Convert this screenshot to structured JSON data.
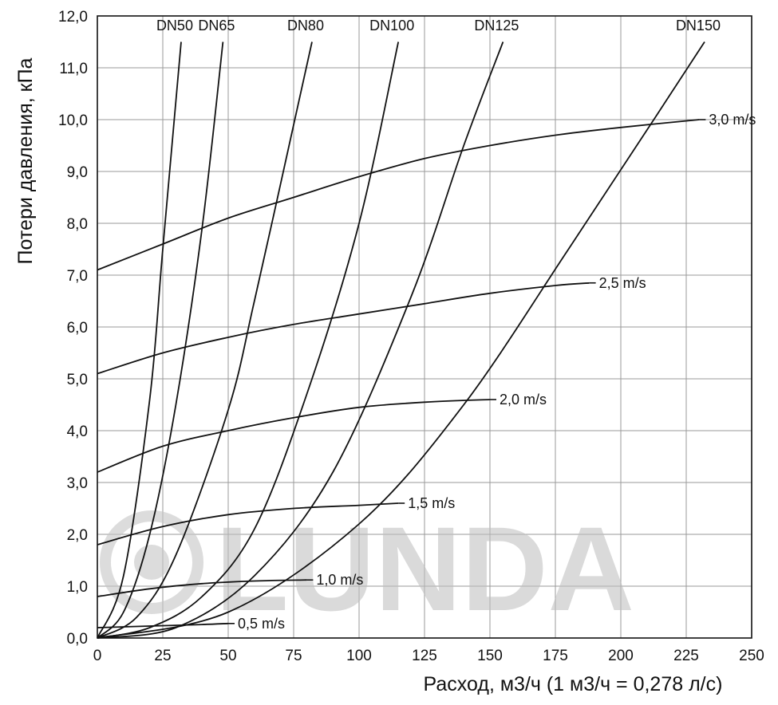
{
  "chart_data": {
    "type": "line",
    "xlabel": "Расход, м3/ч (1 м3/ч = 0,278 л/с)",
    "ylabel": "Потери давления, кПа",
    "xlim": [
      0,
      250
    ],
    "ylim": [
      0,
      12
    ],
    "grid": true,
    "x_ticks": [
      "0",
      "25",
      "50",
      "75",
      "100",
      "125",
      "150",
      "175",
      "200",
      "225",
      "250"
    ],
    "y_ticks": [
      "0,0",
      "1,0",
      "2,0",
      "3,0",
      "4,0",
      "5,0",
      "6,0",
      "7,0",
      "8,0",
      "9,0",
      "10,0",
      "11,0",
      "12,0"
    ],
    "watermark": "LUNDA",
    "series": [
      {
        "name": "DN50",
        "kind": "pipe",
        "points": [
          [
            0,
            0
          ],
          [
            10,
            1.2
          ],
          [
            20,
            4.6
          ],
          [
            25,
            7.5
          ],
          [
            32,
            11.5
          ]
        ]
      },
      {
        "name": "DN65",
        "kind": "pipe",
        "points": [
          [
            0,
            0
          ],
          [
            10,
            0.5
          ],
          [
            20,
            2.0
          ],
          [
            30,
            4.5
          ],
          [
            40,
            7.9
          ],
          [
            48,
            11.5
          ]
        ]
      },
      {
        "name": "DN80",
        "kind": "pipe",
        "points": [
          [
            0,
            0
          ],
          [
            15,
            0.4
          ],
          [
            30,
            1.6
          ],
          [
            50,
            4.4
          ],
          [
            60,
            6.5
          ],
          [
            75,
            9.9
          ],
          [
            82,
            11.5
          ]
        ]
      },
      {
        "name": "DN100",
        "kind": "pipe",
        "points": [
          [
            0,
            0
          ],
          [
            20,
            0.2
          ],
          [
            40,
            0.8
          ],
          [
            60,
            2.1
          ],
          [
            80,
            4.7
          ],
          [
            100,
            8.0
          ],
          [
            115,
            11.5
          ]
        ]
      },
      {
        "name": "DN125",
        "kind": "pipe",
        "points": [
          [
            0,
            0
          ],
          [
            30,
            0.2
          ],
          [
            60,
            1.2
          ],
          [
            90,
            3.2
          ],
          [
            120,
            6.6
          ],
          [
            140,
            9.5
          ],
          [
            155,
            11.5
          ]
        ]
      },
      {
        "name": "DN150",
        "kind": "pipe",
        "points": [
          [
            0,
            0
          ],
          [
            50,
            0.5
          ],
          [
            100,
            2.2
          ],
          [
            140,
            4.5
          ],
          [
            180,
            7.5
          ],
          [
            210,
            9.8
          ],
          [
            232,
            11.5
          ]
        ]
      },
      {
        "name": "3,0 m/s",
        "kind": "velocity",
        "points": [
          [
            0,
            7.1
          ],
          [
            25,
            7.6
          ],
          [
            50,
            8.1
          ],
          [
            75,
            8.5
          ],
          [
            100,
            8.9
          ],
          [
            125,
            9.25
          ],
          [
            150,
            9.5
          ],
          [
            175,
            9.7
          ],
          [
            200,
            9.85
          ],
          [
            230,
            10.0
          ]
        ]
      },
      {
        "name": "2,5 m/s",
        "kind": "velocity",
        "points": [
          [
            0,
            5.1
          ],
          [
            25,
            5.5
          ],
          [
            50,
            5.8
          ],
          [
            75,
            6.05
          ],
          [
            100,
            6.25
          ],
          [
            125,
            6.45
          ],
          [
            150,
            6.65
          ],
          [
            175,
            6.8
          ],
          [
            188,
            6.85
          ]
        ]
      },
      {
        "name": "2,0 m/s",
        "kind": "velocity",
        "points": [
          [
            0,
            3.2
          ],
          [
            25,
            3.7
          ],
          [
            50,
            4.0
          ],
          [
            75,
            4.25
          ],
          [
            100,
            4.45
          ],
          [
            125,
            4.55
          ],
          [
            150,
            4.6
          ]
        ]
      },
      {
        "name": "1,5 m/s",
        "kind": "velocity",
        "points": [
          [
            0,
            1.8
          ],
          [
            25,
            2.15
          ],
          [
            50,
            2.38
          ],
          [
            75,
            2.5
          ],
          [
            100,
            2.56
          ],
          [
            115,
            2.6
          ]
        ]
      },
      {
        "name": "1,0 m/s",
        "kind": "velocity",
        "points": [
          [
            0,
            0.8
          ],
          [
            20,
            0.95
          ],
          [
            40,
            1.05
          ],
          [
            60,
            1.1
          ],
          [
            80,
            1.12
          ]
        ]
      },
      {
        "name": "0,5 m/s",
        "kind": "velocity",
        "points": [
          [
            0,
            0.2
          ],
          [
            20,
            0.23
          ],
          [
            40,
            0.26
          ],
          [
            50,
            0.28
          ]
        ]
      }
    ]
  }
}
